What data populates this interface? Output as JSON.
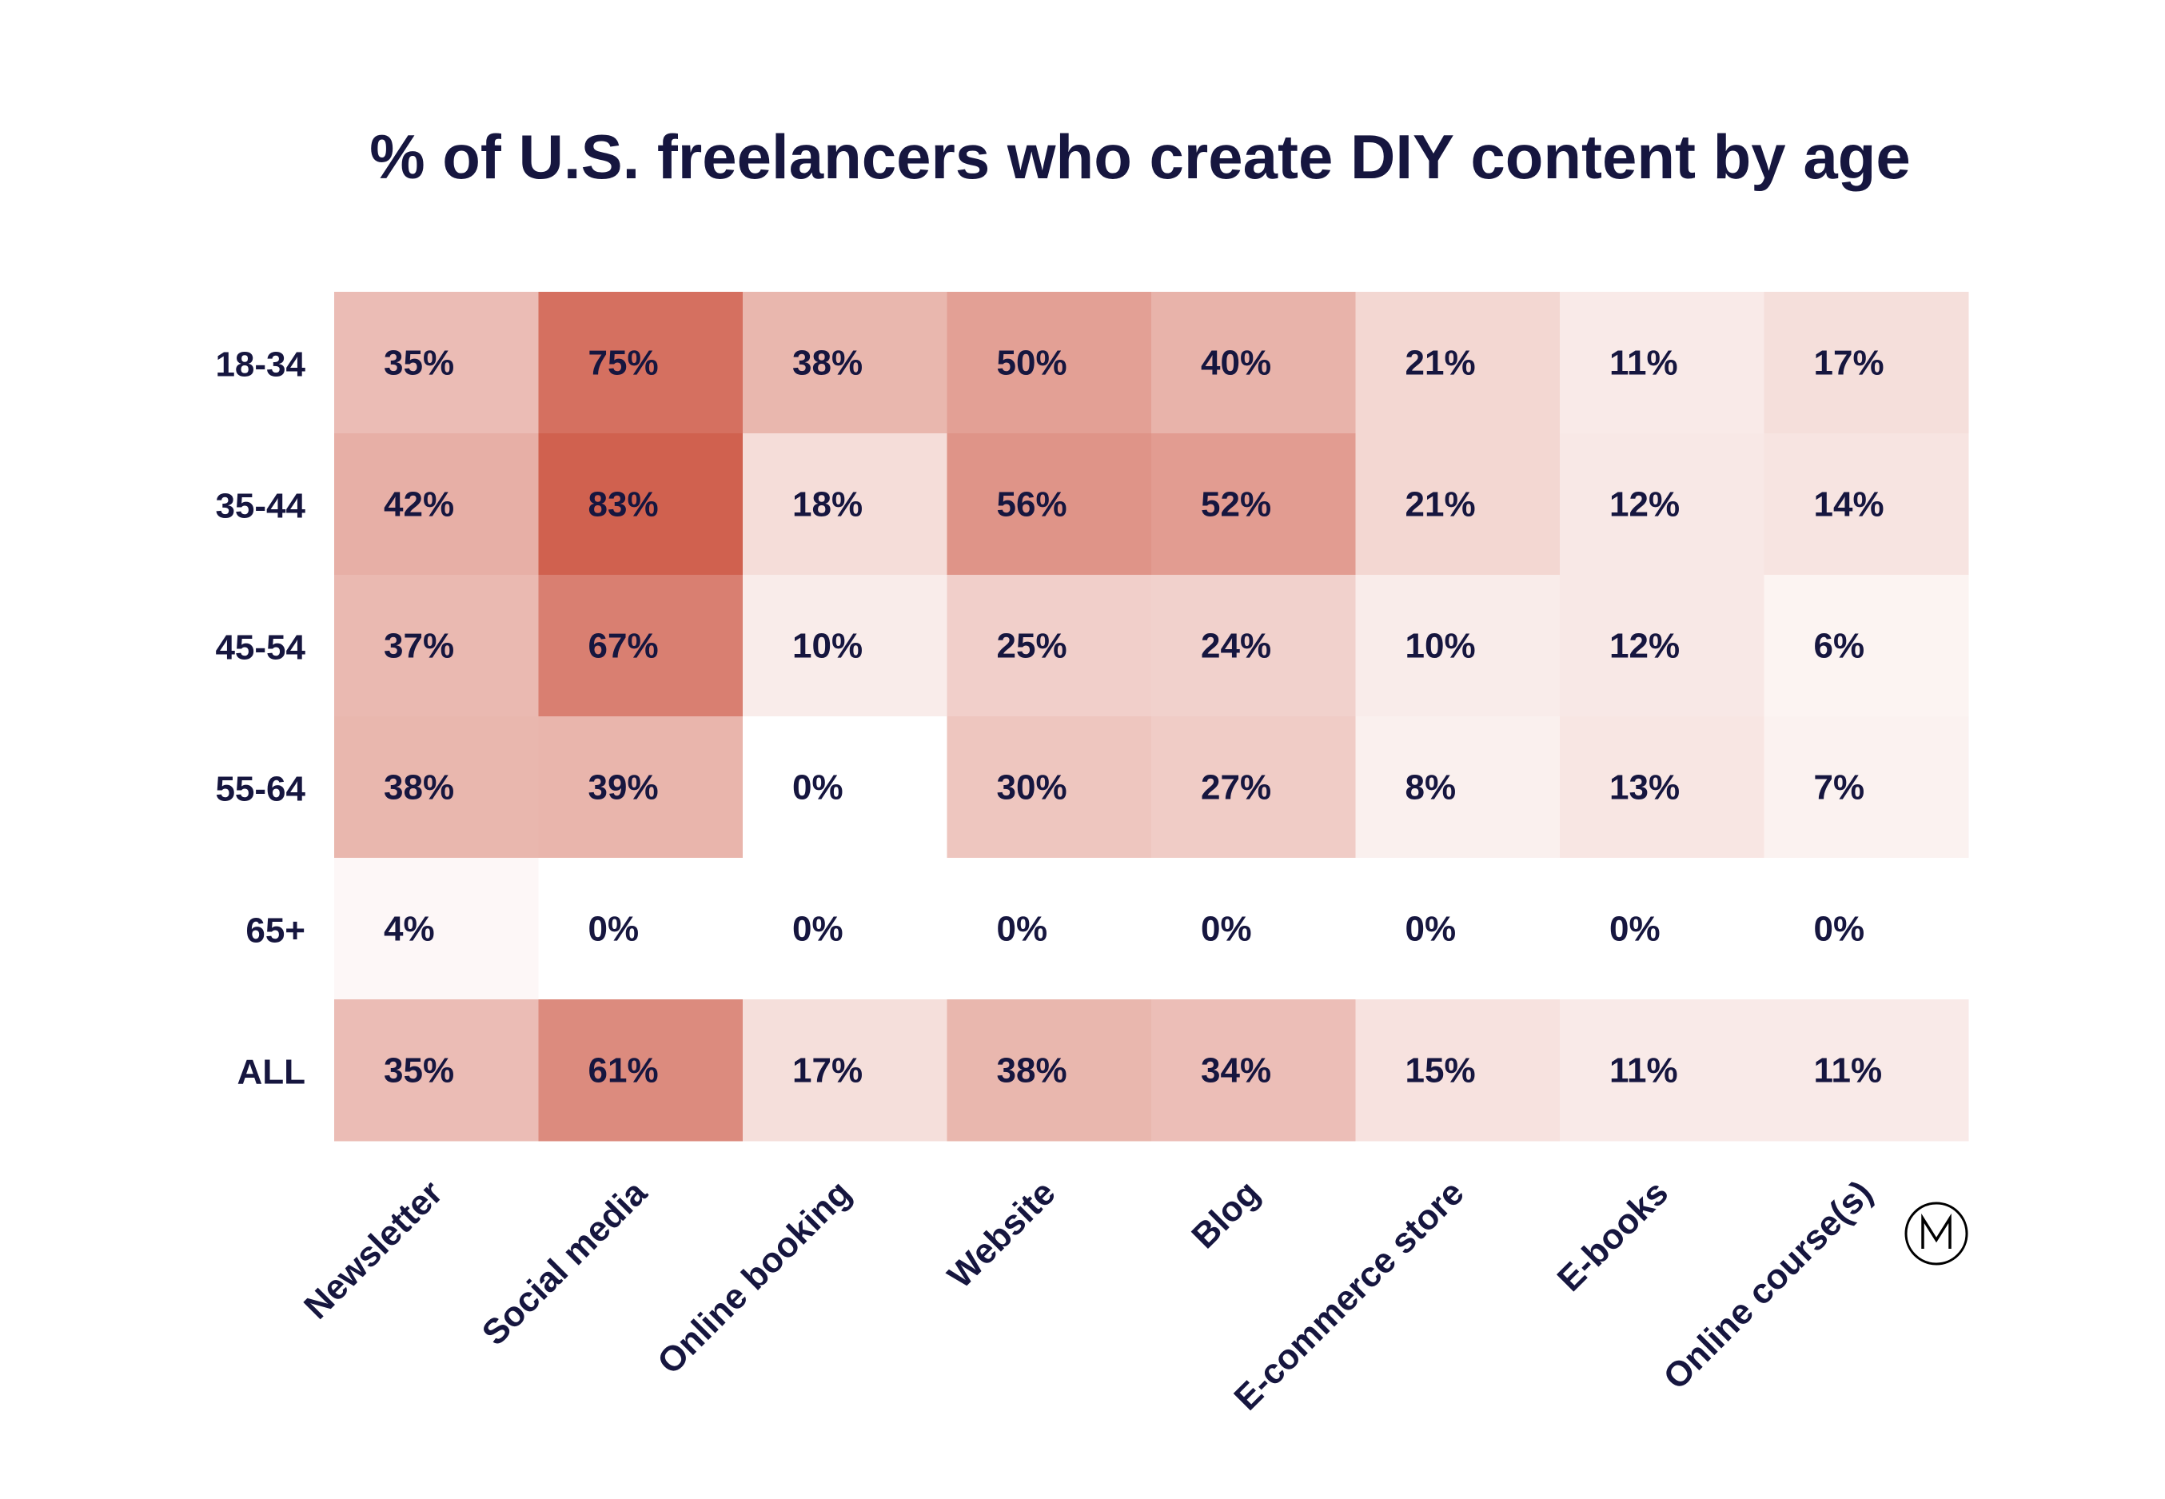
{
  "chart_data": {
    "type": "heatmap",
    "title": "% of U.S. freelancers who create DIY content by age",
    "rows": [
      "18-34",
      "35-44",
      "45-54",
      "55-64",
      "65+",
      "ALL"
    ],
    "columns": [
      "Newsletter",
      "Social media",
      "Online booking",
      "Website",
      "Blog",
      "E-commerce store",
      "E-books",
      "Online course(s)"
    ],
    "values": [
      [
        35,
        75,
        38,
        50,
        40,
        21,
        11,
        17
      ],
      [
        42,
        83,
        18,
        56,
        52,
        21,
        12,
        14
      ],
      [
        37,
        67,
        10,
        25,
        24,
        10,
        12,
        6
      ],
      [
        38,
        39,
        0,
        30,
        27,
        8,
        13,
        7
      ],
      [
        4,
        0,
        0,
        0,
        0,
        0,
        0,
        0
      ],
      [
        35,
        61,
        17,
        38,
        34,
        15,
        11,
        11
      ]
    ],
    "unit": "%",
    "colors": {
      "low": "#ffffff",
      "high": "#d0614f",
      "text": "#16163f"
    }
  },
  "logo": {
    "name": "logo-icon",
    "text": "NM"
  }
}
